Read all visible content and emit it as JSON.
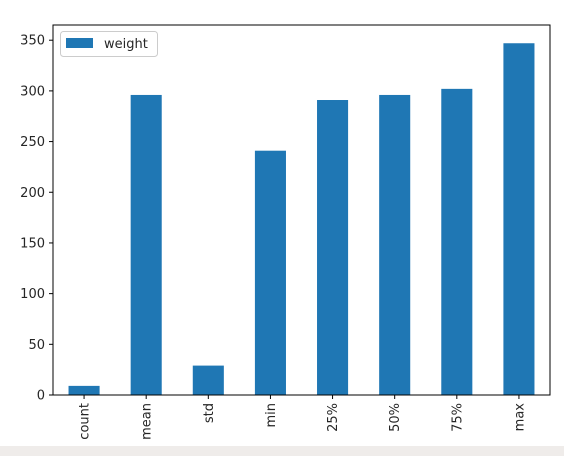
{
  "chart_data": {
    "type": "bar",
    "categories": [
      "count",
      "mean",
      "std",
      "min",
      "25%",
      "50%",
      "75%",
      "max"
    ],
    "series": [
      {
        "name": "weight",
        "values": [
          9,
          296,
          29,
          241,
          291,
          296,
          302,
          347
        ]
      }
    ],
    "title": "",
    "xlabel": "",
    "ylabel": "",
    "ylim": [
      0,
      365
    ],
    "yticks": [
      0,
      50,
      100,
      150,
      200,
      250,
      300,
      350
    ],
    "grid": false,
    "legend_position": "upper-left",
    "bar_color": "#1f77b4"
  }
}
